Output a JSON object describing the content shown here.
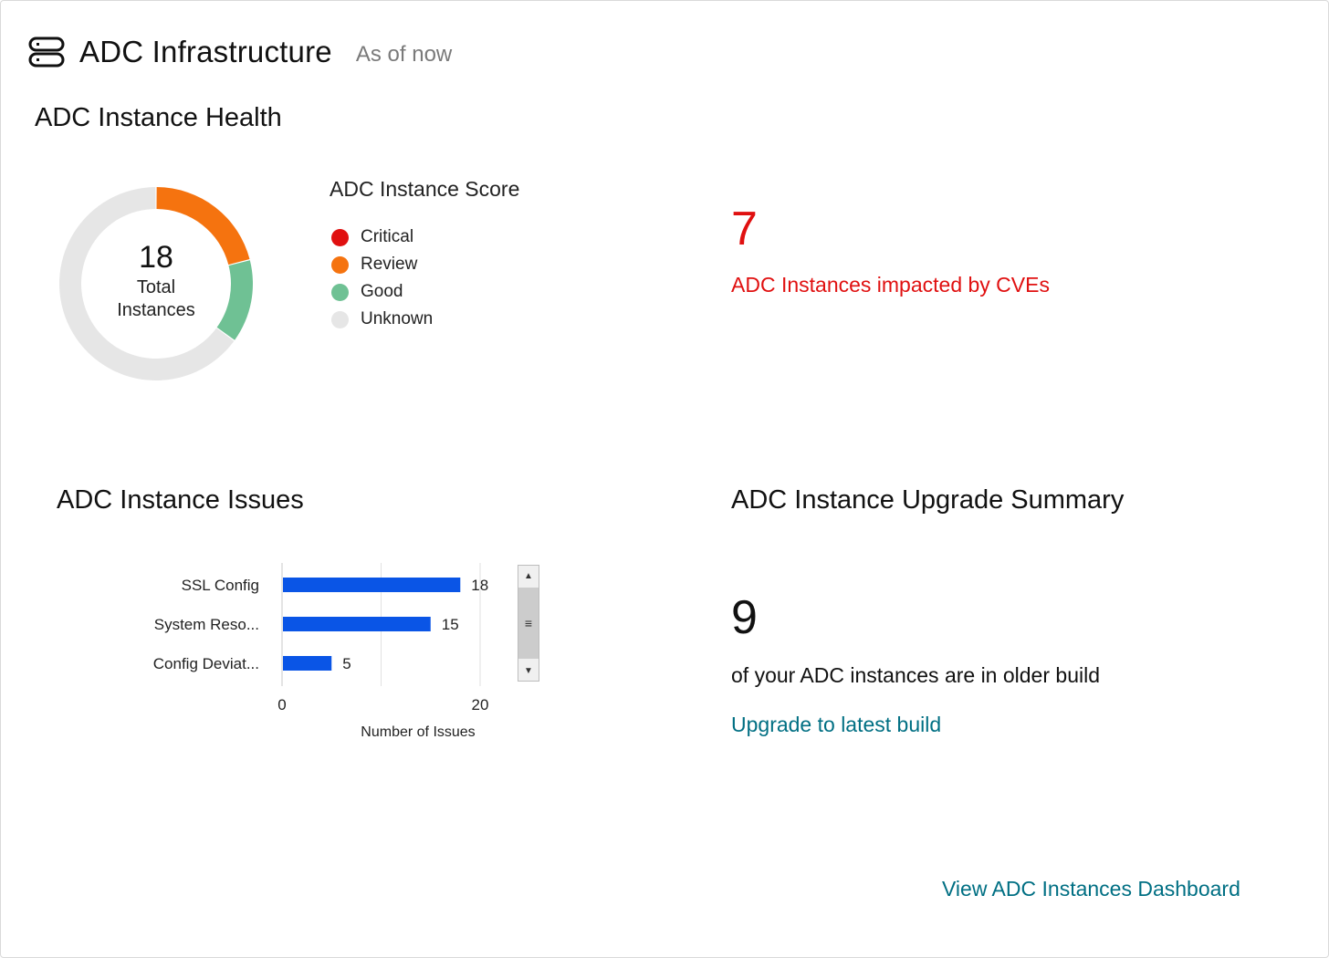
{
  "header": {
    "title": "ADC Infrastructure",
    "subtitle": "As of now"
  },
  "health": {
    "title": "ADC Instance Health",
    "total": "18",
    "total_label_line1": "Total",
    "total_label_line2": "Instances",
    "legend_title": "ADC Instance Score",
    "legend": [
      {
        "label": "Critical",
        "color": "#e01010"
      },
      {
        "label": "Review",
        "color": "#f5730f"
      },
      {
        "label": "Good",
        "color": "#6fc194"
      },
      {
        "label": "Unknown",
        "color": "#e6e6e6"
      }
    ]
  },
  "cve": {
    "count": "7",
    "text": "ADC Instances impacted by CVEs"
  },
  "issues": {
    "title": "ADC Instance Issues"
  },
  "upgrade": {
    "title": "ADC Instance Upgrade Summary",
    "count": "9",
    "text": "of your ADC instances are in older build",
    "link": "Upgrade to latest build"
  },
  "footer": {
    "dashboard_link": "View ADC Instances Dashboard"
  },
  "chart_data": [
    {
      "type": "pie",
      "donut": true,
      "title": "",
      "slices": [
        {
          "label": "Review",
          "value": 0.21,
          "color": "#f5730f"
        },
        {
          "label": "Good",
          "value": 0.14,
          "color": "#6fc194"
        },
        {
          "label": "Unknown",
          "value": 0.65,
          "color": "#e6e6e6"
        }
      ]
    },
    {
      "type": "bar",
      "orientation": "horizontal",
      "categories": [
        "SSL Config",
        "System Reso...",
        "Config Deviat..."
      ],
      "values": [
        18,
        15,
        5
      ],
      "xlabel": "Number of Issues",
      "ylabel": "",
      "xlim": [
        0,
        20
      ],
      "xticks": [
        0,
        20
      ],
      "grid": true,
      "bar_color": "#0a55e6"
    }
  ]
}
